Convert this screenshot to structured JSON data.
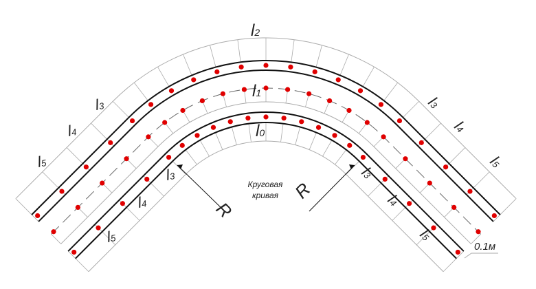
{
  "colors": {
    "rail": "#111111",
    "guide": "#aaaaaa",
    "dot": "#e00000",
    "centerline": "#666666"
  },
  "labels": {
    "l2": {
      "main": "l",
      "sub": "2"
    },
    "l1": {
      "main": "l",
      "sub": "1"
    },
    "l0": {
      "main": "l",
      "sub": "0"
    },
    "outer_left": [
      {
        "main": "l",
        "sub": "3"
      },
      {
        "main": "l",
        "sub": "4"
      },
      {
        "main": "l",
        "sub": "5"
      }
    ],
    "outer_right": [
      {
        "main": "l",
        "sub": "3"
      },
      {
        "main": "l",
        "sub": "4"
      },
      {
        "main": "l",
        "sub": "5"
      }
    ],
    "inner_left": [
      {
        "main": "l",
        "sub": "3"
      },
      {
        "main": "l",
        "sub": "4"
      },
      {
        "main": "l",
        "sub": "5"
      }
    ],
    "inner_right": [
      {
        "main": "l",
        "sub": "3"
      },
      {
        "main": "l",
        "sub": "4"
      },
      {
        "main": "l",
        "sub": "5"
      }
    ],
    "radius_left": "R",
    "radius_right": "R",
    "curve_line1": "Круговая",
    "curve_line2": "кривая",
    "offset": "0.1м"
  }
}
